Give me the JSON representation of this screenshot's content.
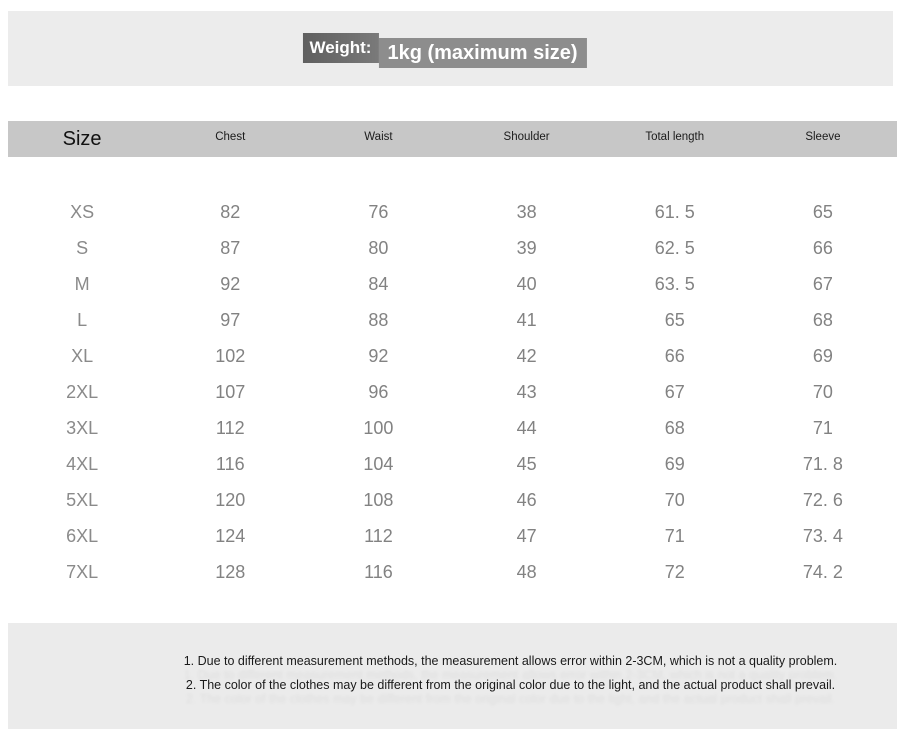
{
  "weight_banner": {
    "label": "Weight:",
    "value": "1kg (maximum size)"
  },
  "size_chart": {
    "columns": [
      "Size",
      "Chest",
      "Waist",
      "Shoulder",
      "Total length",
      "Sleeve"
    ],
    "rows": [
      [
        "XS",
        "82",
        "76",
        "38",
        "61. 5",
        "65"
      ],
      [
        "S",
        "87",
        "80",
        "39",
        "62. 5",
        "66"
      ],
      [
        "M",
        "92",
        "84",
        "40",
        "63. 5",
        "67"
      ],
      [
        "L",
        "97",
        "88",
        "41",
        "65",
        "68"
      ],
      [
        "XL",
        "102",
        "92",
        "42",
        "66",
        "69"
      ],
      [
        "2XL",
        "107",
        "96",
        "43",
        "67",
        "70"
      ],
      [
        "3XL",
        "112",
        "100",
        "44",
        "68",
        "71"
      ],
      [
        "4XL",
        "116",
        "104",
        "45",
        "69",
        "71. 8"
      ],
      [
        "5XL",
        "120",
        "108",
        "46",
        "70",
        "72. 6"
      ],
      [
        "6XL",
        "124",
        "112",
        "47",
        "71",
        "73. 4"
      ],
      [
        "7XL",
        "128",
        "116",
        "48",
        "72",
        "74. 2"
      ]
    ]
  },
  "notes": [
    "1. Due to different measurement methods, the measurement allows error within 2-3CM, which is not a quality problem.",
    "2. The color of the clothes may be different from the original color due to the light, and the actual product shall prevail."
  ],
  "colors": {
    "banner_bg": "#ececec",
    "weight_label_bg": "#666666",
    "weight_value_bg": "#8d8d8d",
    "header_bar_bg": "#c7c7c7",
    "header_text": "#1b1b1b",
    "table_text": "#828282",
    "notes_bg": "#ebebeb",
    "note_text": "#1a1a1a"
  }
}
